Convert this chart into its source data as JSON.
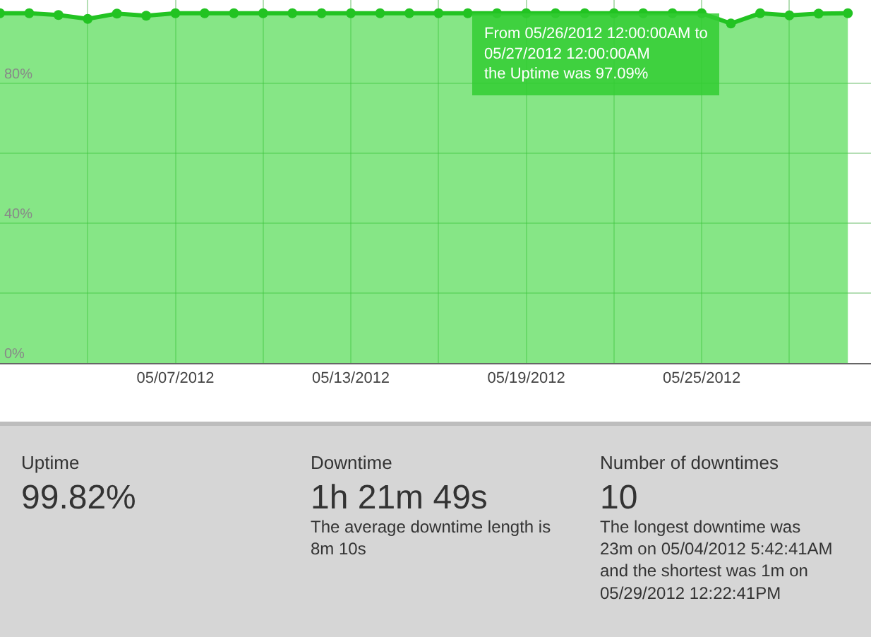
{
  "chart_data": {
    "type": "area",
    "x": [
      "2012-05-01",
      "2012-05-02",
      "2012-05-03",
      "2012-05-04",
      "2012-05-05",
      "2012-05-06",
      "2012-05-07",
      "2012-05-08",
      "2012-05-09",
      "2012-05-10",
      "2012-05-11",
      "2012-05-12",
      "2012-05-13",
      "2012-05-14",
      "2012-05-15",
      "2012-05-16",
      "2012-05-17",
      "2012-05-18",
      "2012-05-19",
      "2012-05-20",
      "2012-05-21",
      "2012-05-22",
      "2012-05-23",
      "2012-05-24",
      "2012-05-25",
      "2012-05-26",
      "2012-05-27",
      "2012-05-28",
      "2012-05-29",
      "2012-05-30"
    ],
    "series": [
      {
        "color": "#22c322",
        "values": [
          100,
          100,
          99.5,
          98.4,
          99.9,
          99.3,
          100,
          100,
          100,
          100,
          100,
          100,
          100,
          100,
          100,
          100,
          100,
          100,
          100,
          100,
          100,
          100,
          100,
          100,
          100,
          97.09,
          100,
          99.4,
          99.9,
          100
        ]
      }
    ],
    "xlim": [
      "2012-05-01",
      "2012-05-30T19:00"
    ],
    "xticks": [
      {
        "value": "2012-05-04",
        "label": null
      },
      {
        "value": "2012-05-07",
        "label": "05/07/2012"
      },
      {
        "value": "2012-05-10",
        "label": null
      },
      {
        "value": "2012-05-13",
        "label": "05/13/2012"
      },
      {
        "value": "2012-05-16",
        "label": null
      },
      {
        "value": "2012-05-19",
        "label": "05/19/2012"
      },
      {
        "value": "2012-05-22",
        "label": null
      },
      {
        "value": "2012-05-25",
        "label": "05/25/2012"
      },
      {
        "value": "2012-05-28",
        "label": null
      }
    ],
    "ylim": [
      0,
      103.8
    ],
    "yticks": [
      {
        "value": 0,
        "label": "0%"
      },
      {
        "value": 20,
        "label": null
      },
      {
        "value": 40,
        "label": "40%"
      },
      {
        "value": 60,
        "label": null
      },
      {
        "value": 80,
        "label": "80%"
      }
    ],
    "grid": true,
    "marker": "circle",
    "legend": false,
    "annotations": [
      {
        "text": "From 05/26/2012 12:00:00AM to\n05/27/2012 12:00:00AM\nthe Uptime was 97.09%",
        "x": "2012-05-26",
        "y": 97.09
      },
      "Uptime",
      "99.82%",
      "Downtime",
      "1h 21m 49s",
      "The average downtime length is\n8m 10s",
      "Number of downtimes",
      "10",
      "The longest downtime was\n23m on 05/04/2012 5:42:41AM\nand the shortest was 1m on\n05/29/2012 12:22:41PM"
    ]
  }
}
